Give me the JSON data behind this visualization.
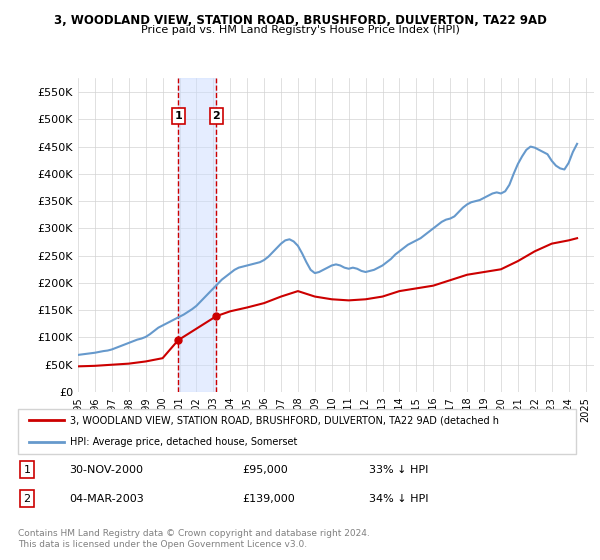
{
  "title1": "3, WOODLAND VIEW, STATION ROAD, BRUSHFORD, DULVERTON, TA22 9AD",
  "title2": "Price paid vs. HM Land Registry's House Price Index (HPI)",
  "ylabel_ticks": [
    "£0",
    "£50K",
    "£100K",
    "£150K",
    "£200K",
    "£250K",
    "£300K",
    "£350K",
    "£400K",
    "£450K",
    "£500K",
    "£550K"
  ],
  "ytick_vals": [
    0,
    50000,
    100000,
    150000,
    200000,
    250000,
    300000,
    350000,
    400000,
    450000,
    500000,
    550000
  ],
  "ylim": [
    0,
    575000
  ],
  "xlim_start": 1995.0,
  "xlim_end": 2025.5,
  "sale1_date": "30-NOV-2000",
  "sale1_x": 2000.92,
  "sale1_price": 95000,
  "sale1_label": "33% ↓ HPI",
  "sale2_date": "04-MAR-2003",
  "sale2_x": 2003.17,
  "sale2_price": 139000,
  "sale2_label": "34% ↓ HPI",
  "legend_line1": "3, WOODLAND VIEW, STATION ROAD, BRUSHFORD, DULVERTON, TA22 9AD (detached h",
  "legend_line2": "HPI: Average price, detached house, Somerset",
  "footnote1": "Contains HM Land Registry data © Crown copyright and database right 2024.",
  "footnote2": "This data is licensed under the Open Government Licence v3.0.",
  "hpi_color": "#6699cc",
  "price_color": "#cc0000",
  "vline_color": "#cc0000",
  "shade_color": "#ccddff",
  "box_color": "#cc0000",
  "xtick_years": [
    1995,
    1996,
    1997,
    1998,
    1999,
    2000,
    2001,
    2002,
    2003,
    2004,
    2005,
    2006,
    2007,
    2008,
    2009,
    2010,
    2011,
    2012,
    2013,
    2014,
    2015,
    2016,
    2017,
    2018,
    2019,
    2020,
    2021,
    2022,
    2023,
    2024,
    2025
  ],
  "hpi_x": [
    1995.0,
    1995.25,
    1995.5,
    1995.75,
    1996.0,
    1996.25,
    1996.5,
    1996.75,
    1997.0,
    1997.25,
    1997.5,
    1997.75,
    1998.0,
    1998.25,
    1998.5,
    1998.75,
    1999.0,
    1999.25,
    1999.5,
    1999.75,
    2000.0,
    2000.25,
    2000.5,
    2000.75,
    2001.0,
    2001.25,
    2001.5,
    2001.75,
    2002.0,
    2002.25,
    2002.5,
    2002.75,
    2003.0,
    2003.25,
    2003.5,
    2003.75,
    2004.0,
    2004.25,
    2004.5,
    2004.75,
    2005.0,
    2005.25,
    2005.5,
    2005.75,
    2006.0,
    2006.25,
    2006.5,
    2006.75,
    2007.0,
    2007.25,
    2007.5,
    2007.75,
    2008.0,
    2008.25,
    2008.5,
    2008.75,
    2009.0,
    2009.25,
    2009.5,
    2009.75,
    2010.0,
    2010.25,
    2010.5,
    2010.75,
    2011.0,
    2011.25,
    2011.5,
    2011.75,
    2012.0,
    2012.25,
    2012.5,
    2012.75,
    2013.0,
    2013.25,
    2013.5,
    2013.75,
    2014.0,
    2014.25,
    2014.5,
    2014.75,
    2015.0,
    2015.25,
    2015.5,
    2015.75,
    2016.0,
    2016.25,
    2016.5,
    2016.75,
    2017.0,
    2017.25,
    2017.5,
    2017.75,
    2018.0,
    2018.25,
    2018.5,
    2018.75,
    2019.0,
    2019.25,
    2019.5,
    2019.75,
    2020.0,
    2020.25,
    2020.5,
    2020.75,
    2021.0,
    2021.25,
    2021.5,
    2021.75,
    2022.0,
    2022.25,
    2022.5,
    2022.75,
    2023.0,
    2023.25,
    2023.5,
    2023.75,
    2024.0,
    2024.25,
    2024.5
  ],
  "hpi_y": [
    68000,
    69000,
    70000,
    71000,
    72000,
    73500,
    75000,
    76000,
    78000,
    81000,
    84000,
    87000,
    90000,
    93000,
    96000,
    98000,
    101000,
    106000,
    112000,
    118000,
    122000,
    126000,
    130000,
    134000,
    138000,
    142000,
    147000,
    152000,
    158000,
    166000,
    174000,
    182000,
    190000,
    198000,
    206000,
    212000,
    218000,
    224000,
    228000,
    230000,
    232000,
    234000,
    236000,
    238000,
    242000,
    248000,
    256000,
    264000,
    272000,
    278000,
    280000,
    276000,
    268000,
    254000,
    238000,
    224000,
    218000,
    220000,
    224000,
    228000,
    232000,
    234000,
    232000,
    228000,
    226000,
    228000,
    226000,
    222000,
    220000,
    222000,
    224000,
    228000,
    232000,
    238000,
    244000,
    252000,
    258000,
    264000,
    270000,
    274000,
    278000,
    282000,
    288000,
    294000,
    300000,
    306000,
    312000,
    316000,
    318000,
    322000,
    330000,
    338000,
    344000,
    348000,
    350000,
    352000,
    356000,
    360000,
    364000,
    366000,
    364000,
    368000,
    380000,
    400000,
    418000,
    432000,
    444000,
    450000,
    448000,
    444000,
    440000,
    436000,
    424000,
    415000,
    410000,
    408000,
    420000,
    440000,
    455000
  ],
  "price_x": [
    1995.0,
    1996.0,
    1997.0,
    1998.0,
    1999.0,
    2000.0,
    2000.92,
    2003.17,
    2004.0,
    2005.0,
    2006.0,
    2007.0,
    2008.0,
    2009.0,
    2010.0,
    2011.0,
    2012.0,
    2013.0,
    2014.0,
    2015.0,
    2016.0,
    2017.0,
    2018.0,
    2019.0,
    2020.0,
    2021.0,
    2022.0,
    2023.0,
    2024.0,
    2024.5
  ],
  "price_y": [
    47000,
    48000,
    50000,
    52000,
    56000,
    62000,
    95000,
    139000,
    148000,
    155000,
    163000,
    175000,
    185000,
    175000,
    170000,
    168000,
    170000,
    175000,
    185000,
    190000,
    195000,
    205000,
    215000,
    220000,
    225000,
    240000,
    258000,
    272000,
    278000,
    282000
  ]
}
